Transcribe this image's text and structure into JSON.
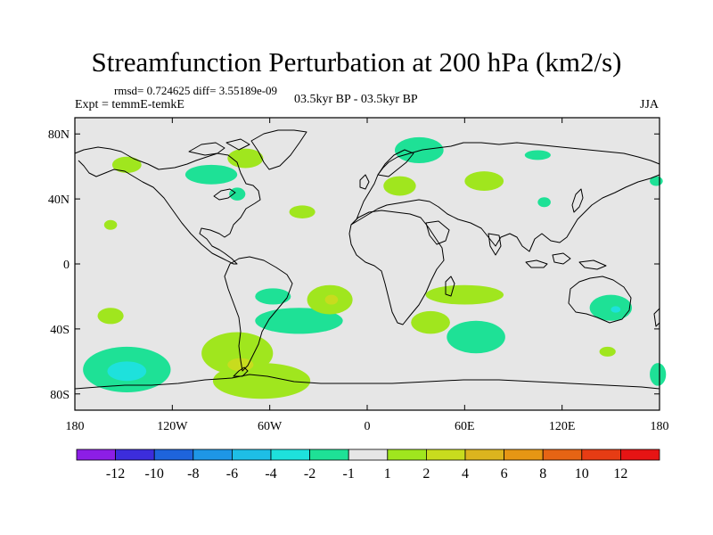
{
  "header": {
    "title": "Streamfunction Perturbation at 200 hPa (km2/s)",
    "stats": "rmsd= 0.724625 diff= 3.55189e-09",
    "experiment": "Expt = temmE-temkE",
    "period": "03.5kyr BP - 03.5kyr BP",
    "season": "JJA"
  },
  "chart_data": {
    "type": "heatmap",
    "title": "Streamfunction Perturbation at 200 hPa (km2/s)",
    "projection": "cylindrical-equidistant",
    "xlabel": "",
    "ylabel": "",
    "xlim": [
      -180,
      180
    ],
    "ylim": [
      -90,
      90
    ],
    "x_ticks": [
      {
        "value": -180,
        "label": "180"
      },
      {
        "value": -120,
        "label": "120W"
      },
      {
        "value": -60,
        "label": "60W"
      },
      {
        "value": 0,
        "label": "0"
      },
      {
        "value": 60,
        "label": "60E"
      },
      {
        "value": 120,
        "label": "120E"
      },
      {
        "value": 180,
        "label": "180"
      }
    ],
    "y_ticks": [
      {
        "value": 80,
        "label": "80N"
      },
      {
        "value": 40,
        "label": "40N"
      },
      {
        "value": 0,
        "label": "0"
      },
      {
        "value": -40,
        "label": "40S"
      },
      {
        "value": -80,
        "label": "80S"
      }
    ],
    "colorbar": {
      "colors": [
        "#8c1ee6",
        "#3c2ddc",
        "#1e64dc",
        "#1e96e6",
        "#1ebee6",
        "#1ee1dc",
        "#1ee196",
        "#e6e6e6",
        "#a0e61e",
        "#c8dc1e",
        "#dcb41e",
        "#e69614",
        "#e66414",
        "#e63c14",
        "#e61414"
      ],
      "labels": [
        "-12",
        "-10",
        "-8",
        "-6",
        "-4",
        "-2",
        "-1",
        "1",
        "2",
        "4",
        "6",
        "8",
        "10",
        "12"
      ]
    },
    "regions": [
      {
        "lon": -148,
        "lat": 61,
        "rx": 9,
        "ry": 5,
        "value": 1.5
      },
      {
        "lon": -96,
        "lat": 55,
        "rx": 16,
        "ry": 6,
        "value": -1.5
      },
      {
        "lon": -75,
        "lat": 65,
        "rx": 11,
        "ry": 6,
        "value": 1.5
      },
      {
        "lon": -80,
        "lat": 43,
        "rx": 5,
        "ry": 4,
        "value": -1.5
      },
      {
        "lon": -40,
        "lat": 32,
        "rx": 8,
        "ry": 4,
        "value": 1.5
      },
      {
        "lon": -158,
        "lat": 24,
        "rx": 4,
        "ry": 3,
        "value": 1.5
      },
      {
        "lon": 32,
        "lat": 70,
        "rx": 15,
        "ry": 8,
        "value": -1.5
      },
      {
        "lon": 20,
        "lat": 48,
        "rx": 10,
        "ry": 6,
        "value": 1.5
      },
      {
        "lon": 72,
        "lat": 51,
        "rx": 12,
        "ry": 6,
        "value": 1.5
      },
      {
        "lon": 105,
        "lat": 67,
        "rx": 8,
        "ry": 3,
        "value": -1.5
      },
      {
        "lon": 109,
        "lat": 38,
        "rx": 4,
        "ry": 3,
        "value": -1.5
      },
      {
        "lon": 178,
        "lat": 51,
        "rx": 4,
        "ry": 3,
        "value": -1.5
      },
      {
        "lon": -58,
        "lat": -20,
        "rx": 11,
        "ry": 5,
        "value": -1.5
      },
      {
        "lon": -42,
        "lat": -35,
        "rx": 27,
        "ry": 8,
        "value": -1.5
      },
      {
        "lon": -23,
        "lat": -22,
        "rx": 14,
        "ry": 9,
        "value": 1.5
      },
      {
        "lon": -22,
        "lat": -22,
        "rx": 4,
        "ry": 3,
        "value": 3
      },
      {
        "lon": -158,
        "lat": -32,
        "rx": 8,
        "ry": 5,
        "value": 1.5
      },
      {
        "lon": -148,
        "lat": -65,
        "rx": 27,
        "ry": 14,
        "value": -1.5
      },
      {
        "lon": -148,
        "lat": -66,
        "rx": 12,
        "ry": 6,
        "value": -3
      },
      {
        "lon": -80,
        "lat": -55,
        "rx": 22,
        "ry": 13,
        "value": 1.5
      },
      {
        "lon": -65,
        "lat": -72,
        "rx": 30,
        "ry": 11,
        "value": 1.5
      },
      {
        "lon": -78,
        "lat": -62,
        "rx": 8,
        "ry": 4,
        "value": 3
      },
      {
        "lon": 60,
        "lat": -19,
        "rx": 24,
        "ry": 6,
        "value": 1.5
      },
      {
        "lon": 39,
        "lat": -36,
        "rx": 12,
        "ry": 7,
        "value": 1.5
      },
      {
        "lon": 67,
        "lat": -45,
        "rx": 18,
        "ry": 10,
        "value": -1.5
      },
      {
        "lon": 150,
        "lat": -27,
        "rx": 13,
        "ry": 8,
        "value": -1.5
      },
      {
        "lon": 153,
        "lat": -28,
        "rx": 3,
        "ry": 2,
        "value": -3
      },
      {
        "lon": 148,
        "lat": -54,
        "rx": 5,
        "ry": 3,
        "value": 1.5
      },
      {
        "lon": 179,
        "lat": -68,
        "rx": 5,
        "ry": 7,
        "value": -1.5
      }
    ]
  }
}
